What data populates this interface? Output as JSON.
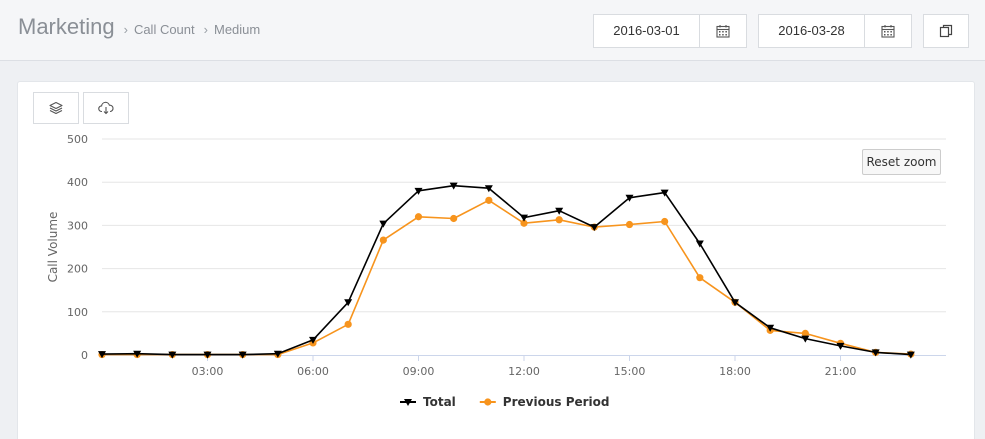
{
  "header": {
    "title": "Marketing",
    "breadcrumb": [
      "Call Count",
      "Medium"
    ]
  },
  "date_range": {
    "start": "2016-03-01",
    "end": "2016-03-28"
  },
  "icons": {
    "calendar": "calendar-icon",
    "copy": "copy-icon",
    "layers": "layers-icon",
    "download": "cloud-download-icon"
  },
  "chart": {
    "reset_zoom_label": "Reset zoom"
  },
  "chart_data": {
    "type": "line",
    "ylabel": "Call Volume",
    "ylim": [
      0,
      500
    ],
    "yticks": [
      "0",
      "100",
      "200",
      "300",
      "400",
      "500"
    ],
    "xlim": [
      0,
      24
    ],
    "xticks": [
      {
        "hour": 3,
        "label": "03:00"
      },
      {
        "hour": 6,
        "label": "06:00"
      },
      {
        "hour": 9,
        "label": "09:00"
      },
      {
        "hour": 12,
        "label": "12:00"
      },
      {
        "hour": 15,
        "label": "15:00"
      },
      {
        "hour": 18,
        "label": "18:00"
      },
      {
        "hour": 21,
        "label": "21:00"
      }
    ],
    "grid": true,
    "legend_position": "bottom-center",
    "x": [
      0,
      1,
      2,
      3,
      4,
      5,
      6,
      7,
      8,
      9,
      10,
      11,
      12,
      13,
      14,
      15,
      16,
      17,
      18,
      19,
      20,
      21,
      22,
      23
    ],
    "series": [
      {
        "name": "Total",
        "color": "#000000",
        "marker": "triangle-down",
        "values": [
          2,
          3,
          1,
          1,
          1,
          3,
          35,
          122,
          304,
          380,
          392,
          386,
          318,
          334,
          296,
          364,
          376,
          258,
          122,
          63,
          38,
          21,
          6,
          1
        ]
      },
      {
        "name": "Previous Period",
        "color": "#f7941d",
        "marker": "circle",
        "values": [
          1,
          1,
          1,
          1,
          1,
          1,
          28,
          71,
          266,
          320,
          316,
          358,
          305,
          313,
          296,
          302,
          309,
          179,
          122,
          57,
          50,
          27,
          6,
          2
        ]
      }
    ]
  }
}
